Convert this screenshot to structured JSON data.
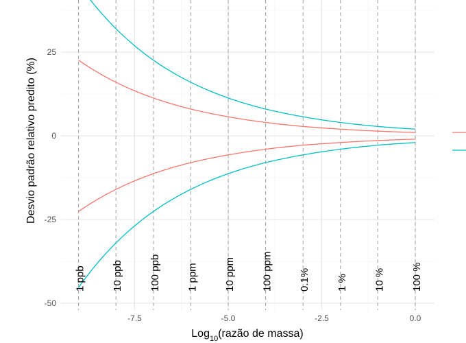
{
  "chart_data": {
    "type": "line",
    "xlabel_main": "Log",
    "xlabel_sub": "10",
    "xlabel_rest": "(razão de massa)",
    "ylabel": "Desvio padrão relativo predito (%)",
    "xlim": [
      -9.3,
      0.3
    ],
    "ylim": [
      -50,
      40
    ],
    "x_ticks": [
      -7.5,
      -5.0,
      -2.5,
      0.0
    ],
    "x_tick_labels": [
      "-7.5",
      "-5.0",
      "-2.5",
      "0.0"
    ],
    "y_ticks": [
      -50,
      -25,
      0,
      25
    ],
    "y_tick_labels": [
      "-50",
      "-25",
      "0",
      "25"
    ],
    "grid": true,
    "legend": "right",
    "reference_lines": [
      {
        "x": -9,
        "label": "1 ppb"
      },
      {
        "x": -8,
        "label": "10 ppb"
      },
      {
        "x": -7,
        "label": "100 ppb"
      },
      {
        "x": -6,
        "label": "1 ppm"
      },
      {
        "x": -5,
        "label": "10 ppm"
      },
      {
        "x": -4,
        "label": "100 ppm"
      },
      {
        "x": -3,
        "label": "0.1%"
      },
      {
        "x": -2,
        "label": "1 %"
      },
      {
        "x": -1,
        "label": "10 %"
      },
      {
        "x": 0,
        "label": "100 %"
      }
    ],
    "x": [
      -9,
      -8,
      -7,
      -6,
      -5,
      -4,
      -3,
      -2,
      -1,
      0
    ],
    "series": [
      {
        "color": "#F8766D",
        "values": [
          22.6,
          16.0,
          11.3,
          8.0,
          5.7,
          4.0,
          2.8,
          2.0,
          1.4,
          1.0
        ]
      },
      {
        "color": "#F8766D",
        "values": [
          -22.6,
          -16.0,
          -11.3,
          -8.0,
          -5.7,
          -4.0,
          -2.8,
          -2.0,
          -1.4,
          -1.0
        ]
      },
      {
        "color": "#00BFC4",
        "values": [
          45.3,
          32.0,
          22.6,
          16.0,
          11.3,
          8.0,
          5.7,
          4.0,
          2.8,
          2.0
        ]
      },
      {
        "color": "#00BFC4",
        "values": [
          -45.3,
          -32.0,
          -22.6,
          -16.0,
          -11.3,
          -8.0,
          -5.7,
          -4.0,
          -2.8,
          -2.0
        ]
      }
    ]
  }
}
